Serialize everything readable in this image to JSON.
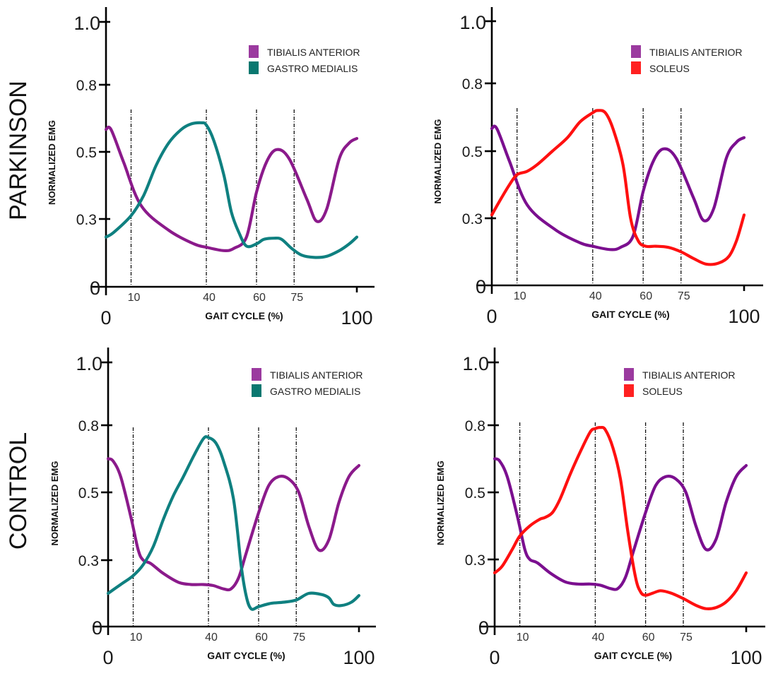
{
  "figure": {
    "row_labels": [
      "PARKINSON",
      "CONTROL"
    ]
  },
  "chart_data": [
    {
      "type": "line",
      "panel": "top-left",
      "row": "PARKINSON",
      "title": "",
      "xlabel": "GAIT CYCLE (%)",
      "ylabel": "NORMALIZED EMG",
      "xlim": [
        0,
        100
      ],
      "ylim": [
        0,
        1.0
      ],
      "yticks": [
        0,
        0.3,
        0.5,
        0.8,
        1.0
      ],
      "ytick_labels": [
        "0",
        "0.3",
        "0.5",
        "0.8",
        "1.0"
      ],
      "xticks_small": [
        10,
        40,
        60,
        75
      ],
      "xticks_small_labels": [
        "10",
        "40",
        "60",
        "75"
      ],
      "xticks_big_labels": [
        "0",
        "100"
      ],
      "phase_lines": [
        10,
        40,
        60,
        75
      ],
      "grid": false,
      "legend_position": "top-right",
      "series": [
        {
          "name": "TIBIALIS ANTERIOR",
          "color": "#8B1A8B",
          "x": [
            0,
            2,
            7,
            14,
            25,
            35,
            40,
            47,
            51,
            56,
            60,
            64,
            68,
            73,
            80,
            84,
            88,
            93,
            97,
            100
          ],
          "y": [
            0.6,
            0.6,
            0.47,
            0.34,
            0.25,
            0.19,
            0.175,
            0.16,
            0.17,
            0.22,
            0.38,
            0.47,
            0.51,
            0.48,
            0.36,
            0.29,
            0.33,
            0.48,
            0.54,
            0.56
          ]
        },
        {
          "name": "GASTRO MEDIALIS",
          "color": "#0F8080",
          "x": [
            0,
            3,
            10,
            15,
            20,
            25,
            30,
            34,
            38,
            40,
            43,
            47,
            50,
            53,
            56,
            60,
            63,
            67,
            70,
            74,
            78,
            83,
            88,
            93,
            97,
            100
          ],
          "y": [
            0.22,
            0.24,
            0.31,
            0.37,
            0.46,
            0.54,
            0.6,
            0.625,
            0.63,
            0.62,
            0.55,
            0.43,
            0.32,
            0.24,
            0.18,
            0.19,
            0.21,
            0.215,
            0.21,
            0.17,
            0.14,
            0.13,
            0.135,
            0.16,
            0.19,
            0.22
          ]
        }
      ]
    },
    {
      "type": "line",
      "panel": "top-right",
      "row": "PARKINSON",
      "title": "",
      "xlabel": "GAIT CYCLE (%)",
      "ylabel": "NORMALIZED EMG",
      "xlim": [
        0,
        100
      ],
      "ylim": [
        0,
        1.0
      ],
      "yticks": [
        0,
        0.3,
        0.5,
        0.8,
        1.0
      ],
      "ytick_labels": [
        "0",
        "0.3",
        "0.5",
        "0.8",
        "1.0"
      ],
      "xticks_small": [
        10,
        40,
        60,
        75
      ],
      "xticks_small_labels": [
        "10",
        "40",
        "60",
        "75"
      ],
      "xticks_big_labels": [
        "0",
        "100"
      ],
      "phase_lines": [
        10,
        40,
        60,
        75
      ],
      "grid": false,
      "legend_position": "top-right",
      "series": [
        {
          "name": "TIBIALIS ANTERIOR",
          "color": "#7B0F8F",
          "x": [
            0,
            2,
            7,
            14,
            25,
            35,
            40,
            47,
            51,
            56,
            60,
            64,
            68,
            73,
            80,
            84,
            88,
            93,
            97,
            100
          ],
          "y": [
            0.6,
            0.6,
            0.47,
            0.34,
            0.25,
            0.19,
            0.175,
            0.16,
            0.17,
            0.22,
            0.38,
            0.47,
            0.51,
            0.48,
            0.36,
            0.29,
            0.33,
            0.48,
            0.54,
            0.56
          ]
        },
        {
          "name": "SOLEUS",
          "color": "#FF1010",
          "x": [
            0,
            3,
            7,
            10,
            14,
            18,
            24,
            30,
            35,
            40,
            42,
            45,
            48,
            52,
            55,
            58,
            61,
            65,
            70,
            75,
            80,
            85,
            90,
            94,
            97,
            100
          ],
          "y": [
            0.31,
            0.35,
            0.4,
            0.43,
            0.44,
            0.46,
            0.5,
            0.56,
            0.63,
            0.67,
            0.68,
            0.67,
            0.6,
            0.46,
            0.3,
            0.2,
            0.175,
            0.175,
            0.17,
            0.15,
            0.12,
            0.095,
            0.1,
            0.13,
            0.2,
            0.31
          ]
        }
      ]
    },
    {
      "type": "line",
      "panel": "bottom-left",
      "row": "CONTROL",
      "title": "",
      "xlabel": "GAIT CYCLE (%)",
      "ylabel": "NORMALIZED EMG",
      "xlim": [
        0,
        100
      ],
      "ylim": [
        0,
        1.0
      ],
      "yticks": [
        0,
        0.3,
        0.5,
        0.8,
        1.0
      ],
      "ytick_labels": [
        "0",
        "0.3",
        "0.5",
        "0.8",
        "1.0"
      ],
      "xticks_small": [
        10,
        40,
        60,
        75
      ],
      "xticks_small_labels": [
        "10",
        "40",
        "60",
        "75"
      ],
      "xticks_big_labels": [
        "0",
        "100"
      ],
      "phase_lines": [
        10,
        40,
        60,
        75
      ],
      "grid": false,
      "legend_position": "top-right",
      "series": [
        {
          "name": "TIBIALIS ANTERIOR",
          "color": "#8B1A8B",
          "x": [
            0,
            2,
            5,
            9,
            12,
            14,
            17,
            22,
            28,
            33,
            38,
            42,
            46,
            49,
            52,
            55,
            60,
            64,
            68,
            72,
            76,
            80,
            84,
            88,
            92,
            96,
            100
          ],
          "y": [
            0.65,
            0.64,
            0.57,
            0.43,
            0.33,
            0.3,
            0.285,
            0.24,
            0.2,
            0.19,
            0.19,
            0.185,
            0.17,
            0.17,
            0.22,
            0.32,
            0.44,
            0.53,
            0.57,
            0.56,
            0.5,
            0.4,
            0.33,
            0.36,
            0.47,
            0.57,
            0.62
          ]
        },
        {
          "name": "GASTRO MEDIALIS",
          "color": "#0F8080",
          "x": [
            0,
            5,
            10,
            14,
            18,
            22,
            26,
            30,
            34,
            38,
            40,
            43,
            46,
            50,
            53,
            55,
            57,
            60,
            65,
            70,
            75,
            80,
            85,
            88,
            90,
            93,
            97,
            100
          ],
          "y": [
            0.15,
            0.19,
            0.23,
            0.28,
            0.34,
            0.42,
            0.49,
            0.57,
            0.66,
            0.74,
            0.745,
            0.72,
            0.64,
            0.48,
            0.28,
            0.14,
            0.08,
            0.09,
            0.105,
            0.11,
            0.12,
            0.15,
            0.145,
            0.13,
            0.1,
            0.095,
            0.11,
            0.14
          ]
        }
      ]
    },
    {
      "type": "line",
      "panel": "bottom-right",
      "row": "CONTROL",
      "title": "",
      "xlabel": "GAIT CYCLE (%)",
      "ylabel": "NORMALIZED EMG",
      "xlim": [
        0,
        100
      ],
      "ylim": [
        0,
        1.0
      ],
      "yticks": [
        0,
        0.3,
        0.5,
        0.8,
        1.0
      ],
      "ytick_labels": [
        "0",
        "0.3",
        "0.5",
        "0.8",
        "1.0"
      ],
      "xticks_small": [
        10,
        40,
        60,
        75
      ],
      "xticks_small_labels": [
        "10",
        "40",
        "60",
        "75"
      ],
      "xticks_big_labels": [
        "0",
        "100"
      ],
      "phase_lines": [
        10,
        40,
        60,
        75
      ],
      "grid": false,
      "legend_position": "top-right",
      "series": [
        {
          "name": "TIBIALIS ANTERIOR",
          "color": "#7B0F8F",
          "x": [
            0,
            2,
            5,
            9,
            12,
            14,
            17,
            22,
            28,
            33,
            38,
            42,
            46,
            49,
            52,
            55,
            60,
            64,
            68,
            72,
            76,
            80,
            84,
            88,
            92,
            96,
            100
          ],
          "y": [
            0.65,
            0.64,
            0.57,
            0.43,
            0.33,
            0.3,
            0.285,
            0.24,
            0.2,
            0.19,
            0.19,
            0.185,
            0.17,
            0.17,
            0.22,
            0.32,
            0.44,
            0.53,
            0.57,
            0.56,
            0.5,
            0.4,
            0.33,
            0.36,
            0.47,
            0.57,
            0.62
          ]
        },
        {
          "name": "SOLEUS",
          "color": "#FF1010",
          "x": [
            0,
            3,
            7,
            10,
            14,
            18,
            20,
            23,
            26,
            30,
            34,
            38,
            40,
            42,
            44,
            47,
            50,
            53,
            56,
            58,
            60,
            63,
            66,
            70,
            75,
            80,
            84,
            88,
            92,
            96,
            100
          ],
          "y": [
            0.24,
            0.27,
            0.33,
            0.37,
            0.4,
            0.42,
            0.425,
            0.44,
            0.48,
            0.58,
            0.68,
            0.77,
            0.785,
            0.79,
            0.78,
            0.7,
            0.56,
            0.38,
            0.22,
            0.155,
            0.14,
            0.15,
            0.16,
            0.15,
            0.125,
            0.095,
            0.08,
            0.085,
            0.11,
            0.16,
            0.24
          ]
        }
      ]
    }
  ]
}
